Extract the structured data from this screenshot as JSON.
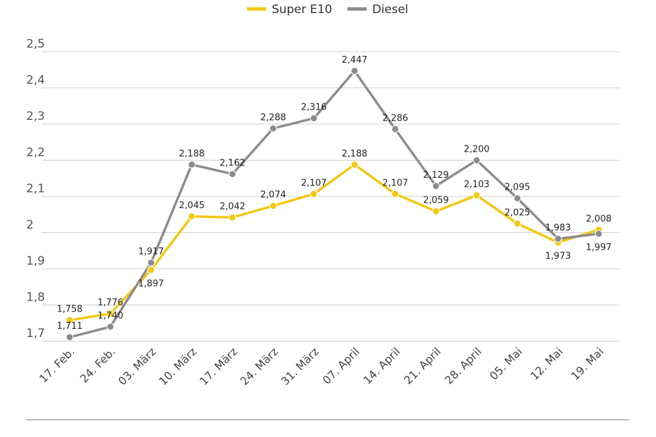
{
  "chart_data": {
    "type": "line",
    "categories": [
      "17. Feb.",
      "24. Feb.",
      "03. März",
      "10. März",
      "17. März",
      "24. März",
      "31. März",
      "07. April",
      "14. April",
      "21. April",
      "28. April",
      "05. Mai",
      "12. Mai",
      "19. Mai"
    ],
    "series": [
      {
        "name": "Super E10",
        "color": "#f2c811",
        "values": [
          1.758,
          1.776,
          1.897,
          2.045,
          2.042,
          2.074,
          2.107,
          2.188,
          2.107,
          2.059,
          2.103,
          2.025,
          1.973,
          2.008
        ],
        "value_labels": [
          "1,758",
          "1,776",
          "1,897",
          "2,045",
          "2,042",
          "2,074",
          "2,107",
          "2,188",
          "2,107",
          "2,059",
          "2,103",
          "2,025",
          "1,973",
          "2,008"
        ]
      },
      {
        "name": "Diesel",
        "color": "#8c8c8c",
        "values": [
          1.711,
          1.74,
          1.917,
          2.188,
          2.162,
          2.288,
          2.316,
          2.447,
          2.286,
          2.129,
          2.2,
          2.095,
          1.983,
          1.997
        ],
        "value_labels": [
          "1,711",
          "1,740",
          "1,917",
          "2,188",
          "2,162",
          "2,288",
          "2,316",
          "2,447",
          "2,286",
          "2,129",
          "2,200",
          "2,095",
          "1,983",
          "1,997"
        ]
      }
    ],
    "ylim": [
      1.7,
      2.5
    ],
    "yticks": [
      {
        "value": 1.7,
        "label": "1,7"
      },
      {
        "value": 1.8,
        "label": "1,8"
      },
      {
        "value": 1.9,
        "label": "1,9"
      },
      2,
      {
        "value": 2.1,
        "label": "2,1"
      },
      {
        "value": 2.2,
        "label": "2,2"
      },
      {
        "value": 2.3,
        "label": "2,3"
      },
      {
        "value": 2.4,
        "label": "2,4"
      },
      {
        "value": 2.5,
        "label": "2,5"
      }
    ],
    "grid": true,
    "legend": "top"
  }
}
